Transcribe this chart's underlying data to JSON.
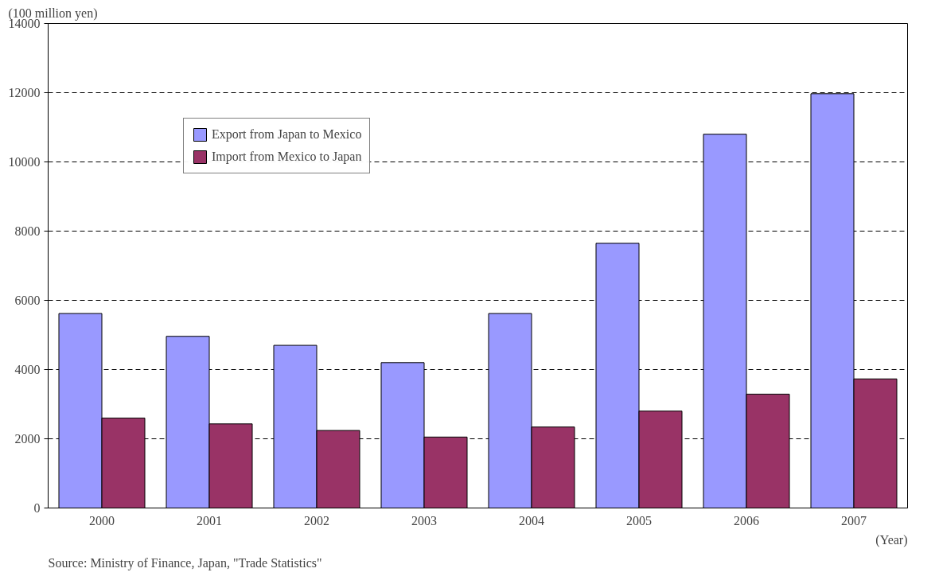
{
  "chart_data": {
    "type": "bar",
    "categories": [
      "2000",
      "2001",
      "2002",
      "2003",
      "2004",
      "2005",
      "2006",
      "2007"
    ],
    "series": [
      {
        "name": "Export from Japan to Mexico",
        "color": "#9999ff",
        "values": [
          5620,
          4960,
          4700,
          4200,
          5620,
          7650,
          10800,
          11970
        ]
      },
      {
        "name": "Import from Mexico to Japan",
        "color": "#993366",
        "values": [
          2600,
          2430,
          2240,
          2050,
          2340,
          2800,
          3290,
          3730
        ]
      }
    ],
    "ylim": [
      0,
      14000
    ],
    "yticks": [
      0,
      2000,
      4000,
      6000,
      8000,
      10000,
      12000,
      14000
    ],
    "ylabel": "(100 million yen)",
    "xlabel": "(Year)",
    "annotations": [
      "Source: Ministry of Finance, Japan, \"Trade Statistics\""
    ],
    "grid": "y",
    "legend": "top left"
  }
}
